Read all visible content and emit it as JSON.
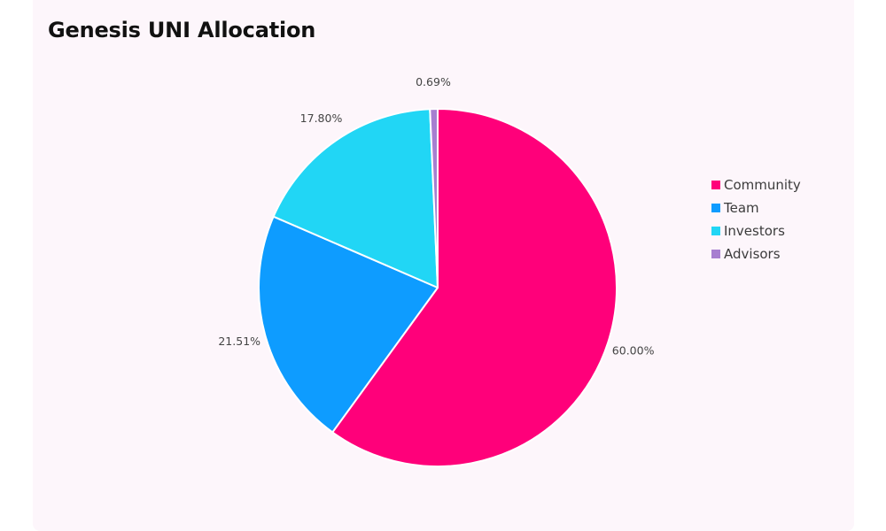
{
  "chart_data": {
    "type": "pie",
    "title": "Genesis UNI Allocation",
    "categories": [
      "Community",
      "Team",
      "Investors",
      "Advisors"
    ],
    "values": [
      60.0,
      21.51,
      17.8,
      0.69
    ],
    "value_labels": [
      "60.00%",
      "21.51%",
      "17.80%",
      "0.69%"
    ],
    "colors": [
      "#ff007a",
      "#0e9cff",
      "#21d6f5",
      "#a77fd0"
    ],
    "start_angle_deg": 0,
    "direction": "clockwise",
    "legend_position": "right"
  }
}
